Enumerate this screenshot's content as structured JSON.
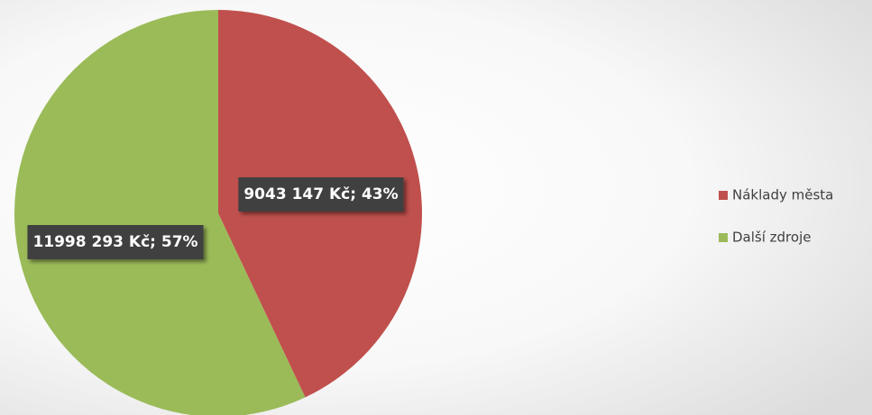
{
  "chart_data": {
    "type": "pie",
    "categories": [
      "Náklady města",
      "Další zdroje"
    ],
    "values": [
      9043147,
      11998293
    ],
    "value_labels": [
      "9043 147 Kč; 43%",
      "11998 293 Kč; 57%"
    ],
    "colors": [
      "#c0504d",
      "#9bbb59"
    ],
    "legend": "right"
  }
}
